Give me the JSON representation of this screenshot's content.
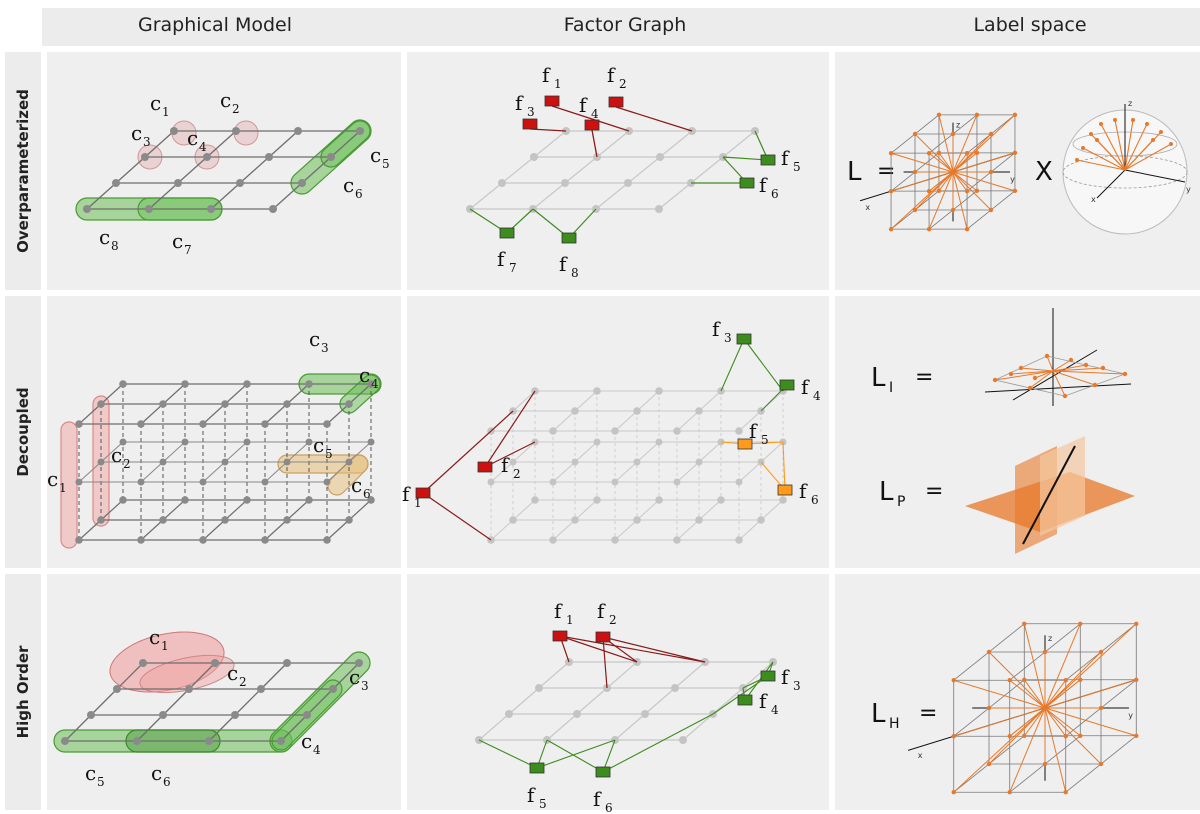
{
  "headers": {
    "col1": "Graphical Model",
    "col2": "Factor Graph",
    "col3": "Label space"
  },
  "rows": {
    "r1": "Overparameterized",
    "r2": "Decoupled",
    "r3": "High Order"
  },
  "labels": {
    "c": "c",
    "f": "f",
    "i1": "1",
    "i2": "2",
    "i3": "3",
    "i4": "4",
    "i5": "5",
    "i6": "6",
    "i7": "7",
    "i8": "8",
    "L": "L",
    "eq": "=",
    "cross": "X",
    "sub_I": "I",
    "sub_P": "P",
    "sub_H": "H",
    "ax_x": "x",
    "ax_y": "y",
    "ax_z": "z"
  },
  "colors": {
    "grid": "#6e6e6e",
    "grid_light": "#c8c8c8",
    "node": "#8a8a8a",
    "node_light": "#c4c4c4",
    "red_factor": "#cc1111",
    "green_factor": "#3d8c1e",
    "orange_factor": "#ff9a1a",
    "orange_arrow": "#e8792a"
  }
}
